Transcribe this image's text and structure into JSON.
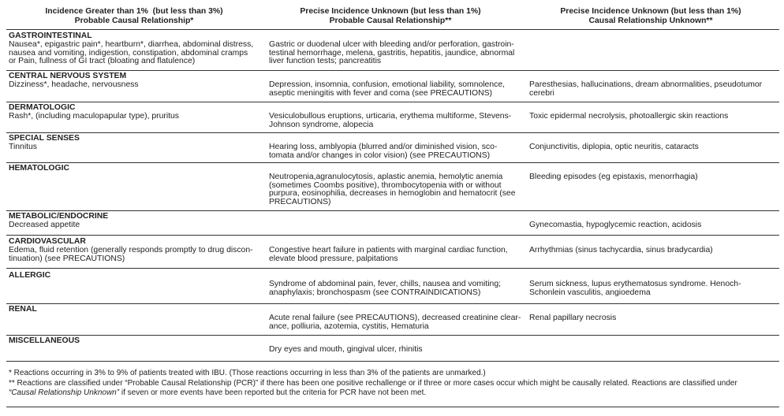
{
  "headers": [
    "Incidence Greater than 1%  (but less than 3%)\nProbable Causal Relationship*",
    "Precise Incidence Unknown (but less than 1%)\nProbable Causal Relationship**",
    "Precise Incidence Unknown (but less than 1%)\nCausal Relationship Unknown**"
  ],
  "rows": [
    {
      "category": "GASTROINTESTINAL",
      "col1": "Nausea*, epigastric pain*, heartburn*, diarrhea, abdominal distress,\nnausea and vomiting, indigestion, constipation, abdominal cramps\nor Pain, fullness of GI tract (bloating and flatulence)",
      "col2": "Gastric or duodenal ulcer with bleeding and/or perforation, gastroin-\ntestinal hemorrhage, melena, gastritis, hepatitis, jaundice, abnormal\nliver function tests; pancreatitis",
      "col3": ""
    },
    {
      "category": "CENTRAL NERVOUS SYSTEM",
      "col1": "Dizziness*, headache, nervousness",
      "col2": "Depression, insomnia, confusion, emotional liability, somnolence,\naseptic meningitis with fever and coma (see PRECAUTIONS)",
      "col3": "Paresthesias, hallucinations, dream abnormalities, pseudotumor\ncerebri"
    },
    {
      "category": "DERMATOLOGIC",
      "col1": "Rash*, (including maculopapular type), pruritus",
      "col2": "Vesiculobullous eruptions, urticaria, erythema multiforme, Stevens-\nJohnson syndrome, alopecia",
      "col3": "Toxic epidermal necrolysis, photoallergic skin reactions"
    },
    {
      "category": "SPECIAL SENSES",
      "col1": "Tinnitus",
      "col2": "Hearing loss, amblyopia (blurred and/or diminished vision, sco-\ntomata and/or changes in color vision) (see PRECAUTIONS)",
      "col3": "Conjunctivitis, diplopia, optic neuritis, cataracts"
    },
    {
      "category": "HEMATOLOGIC",
      "col1": "",
      "col2": "Neutropenia,agranulocytosis, aplastic anemia, hemolytic anemia\n(sometimes Coombs positive), thrombocytopenia with or without\npurpura, eosinophilia, decreases in hemoglobin and hematocrit (see\nPRECAUTIONS)",
      "col3": "Bleeding episodes (eg epistaxis, menorrhagia)"
    },
    {
      "category": "METABOLIC/ENDOCRINE",
      "col1": "Decreased appetite",
      "col2": "",
      "col3": "Gynecomastia, hypoglycemic reaction, acidosis"
    },
    {
      "category": "CARDIOVASCULAR",
      "col1": "Edema, fluid retention (generally responds promptly to drug discon-\ntinuation) (see PRECAUTIONS)",
      "col2": "Congestive heart failure in patients with marginal cardiac function,\nelevate blood pressure, palpitations",
      "col3": "Arrhythmias (sinus tachycardia, sinus bradycardia)"
    },
    {
      "category": "ALLERGIC",
      "col1": "",
      "col2": "Syndrome of abdominal pain, fever, chills, nausea and vomiting;\nanaphylaxis; bronchospasm (see CONTRAINDICATIONS)",
      "col3": "Serum sickness, lupus erythematosus syndrome. Henoch-\nSchonlein vasculitis, angioedema"
    },
    {
      "category": "RENAL",
      "col1": "",
      "col2": "Acute renal failure (see PRECAUTIONS), decreased creatinine clear-\nance, polliuria, azotemia, cystitis, Hematuria",
      "col3": "Renal papillary necrosis"
    },
    {
      "category": "MISCELLANEOUS",
      "col1": "",
      "col2": "Dry eyes and mouth, gingival ulcer, rhinitis",
      "col3": ""
    }
  ],
  "footnotes": {
    "note1": "* Reactions occurring in 3% to 9% of patients treated with IBU. (Those reactions occurring in less than 3% of the patients are unmarked.)",
    "note2": "** Reactions are classified under “Probable Causal Relationship (PCR)” if there has been one positive rechallenge or if three or more cases occur which might be causally related. Reactions are classified under",
    "note3_italic": "“Causal Relationship Unknown”",
    "note3_rest": " if seven or more events have been reported but the criteria for PCR have not been met."
  }
}
